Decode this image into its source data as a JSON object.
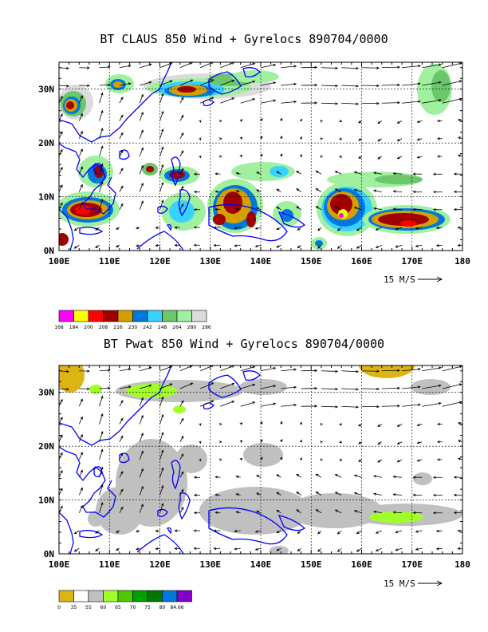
{
  "panels": [
    {
      "title": "BT CLAUS 850 Wind + Gyrelocs 890704/0000",
      "lat_labels": [
        "30N",
        "20N",
        "10N",
        "0N"
      ],
      "lon_labels": [
        "100E",
        "110E",
        "120E",
        "130E",
        "140E",
        "150E",
        "160E",
        "170E",
        "180"
      ],
      "ref_vector_label": "15 M/S",
      "colorbar": {
        "colors": [
          "#ff00ff",
          "#ffff00",
          "#ff0000",
          "#a00000",
          "#d4a000",
          "#0078dc",
          "#38d2ff",
          "#6cc66c",
          "#a0f0a0",
          "#dcdcdc"
        ],
        "labels": [
          "168",
          "184",
          "200",
          "208",
          "216",
          "230",
          "242",
          "248",
          "264",
          "280",
          "286"
        ]
      }
    },
    {
      "title": "BT Pwat 850 Wind + Gyrelocs 890704/0000",
      "lat_labels": [
        "30N",
        "20N",
        "10N",
        "0N"
      ],
      "lon_labels": [
        "100E",
        "110E",
        "120E",
        "130E",
        "140E",
        "150E",
        "160E",
        "170E",
        "180"
      ],
      "ref_vector_label": "15 M/S",
      "colorbar": {
        "colors": [
          "#dcb414",
          "#ffffff",
          "#c0c0c0",
          "#a0ff28",
          "#50c800",
          "#00a000",
          "#007800",
          "#0078dc",
          "#8200c8"
        ],
        "labels": [
          "0",
          "35",
          "55",
          "60",
          "65",
          "70",
          "75",
          "80",
          "84.66"
        ]
      }
    }
  ],
  "map": {
    "lon_range": [
      100,
      180
    ],
    "lat_range": [
      0,
      35
    ],
    "coast_color": "#0000ff",
    "grid": true
  }
}
